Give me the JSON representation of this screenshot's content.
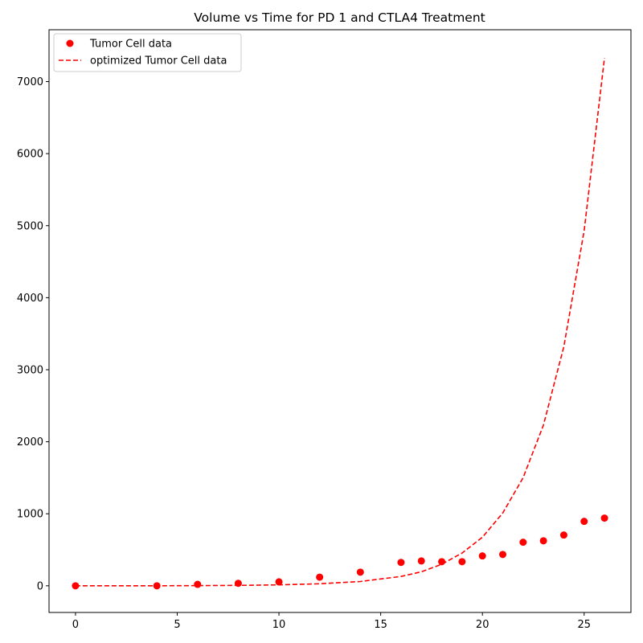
{
  "chart_data": {
    "type": "scatter",
    "title": "Volume vs Time for PD 1 and CTLA4 Treatment",
    "xlabel": "",
    "ylabel": "",
    "xlim": [
      -1.3,
      27.3
    ],
    "ylim": [
      -370,
      7720
    ],
    "x_ticks": [
      0,
      5,
      10,
      15,
      20,
      25
    ],
    "y_ticks": [
      0,
      1000,
      2000,
      3000,
      4000,
      5000,
      6000,
      7000
    ],
    "grid": false,
    "legend_position": "top-left",
    "series": [
      {
        "name": "Tumor Cell data",
        "kind": "scatter",
        "color": "#ff0000",
        "x": [
          0,
          4,
          6,
          8,
          10,
          12,
          14,
          16,
          17,
          18,
          19,
          20,
          21,
          22,
          23,
          24,
          25,
          26
        ],
        "y": [
          0,
          0,
          20,
          35,
          55,
          120,
          190,
          325,
          345,
          335,
          335,
          415,
          435,
          605,
          625,
          705,
          895,
          940
        ]
      },
      {
        "name": "optimized Tumor Cell data",
        "kind": "line",
        "style": "dashed",
        "color": "#ff0000",
        "x": [
          0,
          4,
          6,
          8,
          10,
          12,
          14,
          16,
          17,
          18,
          19,
          20,
          21,
          22,
          23,
          24,
          25,
          26
        ],
        "y": [
          0,
          1,
          3,
          6,
          13,
          28,
          60,
          130,
          195,
          300,
          455,
          675,
          1010,
          1500,
          2230,
          3320,
          4930,
          7330
        ]
      }
    ]
  }
}
